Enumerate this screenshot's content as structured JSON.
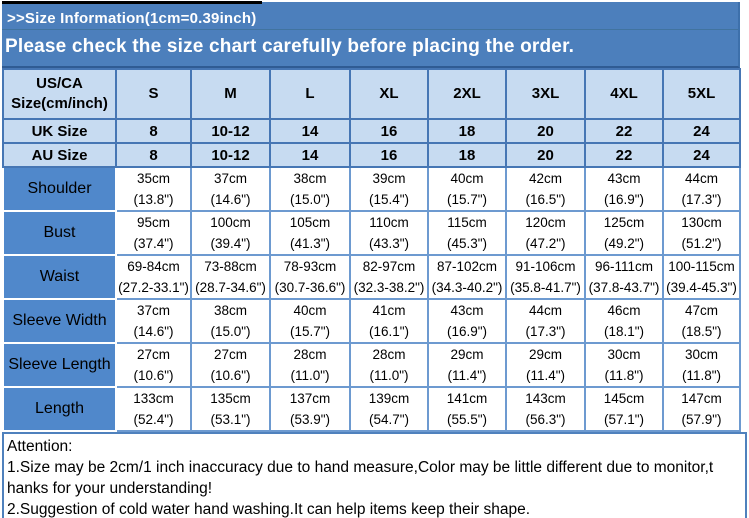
{
  "banner": {
    "title": ">>Size Information(1cm=0.39inch)",
    "subtitle": "Please check the size chart carefully before placing the order."
  },
  "size_chart": {
    "corner_header_line1": "US/CA",
    "corner_header_line2": "Size(cm/inch)",
    "size_columns": [
      "S",
      "M",
      "L",
      "XL",
      "2XL",
      "3XL",
      "4XL",
      "5XL"
    ],
    "region_size_rows": [
      {
        "label": "UK Size",
        "values": [
          "8",
          "10-12",
          "14",
          "16",
          "18",
          "20",
          "22",
          "24"
        ]
      },
      {
        "label": "AU Size",
        "values": [
          "8",
          "10-12",
          "14",
          "16",
          "18",
          "20",
          "22",
          "24"
        ]
      }
    ],
    "measurement_rows": [
      {
        "label": "Shoulder",
        "cells": [
          [
            "35cm",
            "(13.8\")"
          ],
          [
            "37cm",
            "(14.6\")"
          ],
          [
            "38cm",
            "(15.0\")"
          ],
          [
            "39cm",
            "(15.4\")"
          ],
          [
            "40cm",
            "(15.7\")"
          ],
          [
            "42cm",
            "(16.5\")"
          ],
          [
            "43cm",
            "(16.9\")"
          ],
          [
            "44cm",
            "(17.3\")"
          ]
        ]
      },
      {
        "label": "Bust",
        "cells": [
          [
            "95cm",
            "(37.4\")"
          ],
          [
            "100cm",
            "(39.4\")"
          ],
          [
            "105cm",
            "(41.3\")"
          ],
          [
            "110cm",
            "(43.3\")"
          ],
          [
            "115cm",
            "(45.3\")"
          ],
          [
            "120cm",
            "(47.2\")"
          ],
          [
            "125cm",
            "(49.2\")"
          ],
          [
            "130cm",
            "(51.2\")"
          ]
        ]
      },
      {
        "label": "Waist",
        "cells": [
          [
            "69-84cm",
            "(27.2-33.1\")"
          ],
          [
            "73-88cm",
            "(28.7-34.6\")"
          ],
          [
            "78-93cm",
            "(30.7-36.6\")"
          ],
          [
            "82-97cm",
            "(32.3-38.2\")"
          ],
          [
            "87-102cm",
            "(34.3-40.2\")"
          ],
          [
            "91-106cm",
            "(35.8-41.7\")"
          ],
          [
            "96-111cm",
            "(37.8-43.7\")"
          ],
          [
            "100-115cm",
            "(39.4-45.3\")"
          ]
        ]
      },
      {
        "label": "Sleeve Width",
        "cells": [
          [
            "37cm",
            "(14.6\")"
          ],
          [
            "38cm",
            "(15.0\")"
          ],
          [
            "40cm",
            "(15.7\")"
          ],
          [
            "41cm",
            "(16.1\")"
          ],
          [
            "43cm",
            "(16.9\")"
          ],
          [
            "44cm",
            "(17.3\")"
          ],
          [
            "46cm",
            "(18.1\")"
          ],
          [
            "47cm",
            "(18.5\")"
          ]
        ]
      },
      {
        "label": "Sleeve Length",
        "cells": [
          [
            "27cm",
            "(10.6\")"
          ],
          [
            "27cm",
            "(10.6\")"
          ],
          [
            "28cm",
            "(11.0\")"
          ],
          [
            "28cm",
            "(11.0\")"
          ],
          [
            "29cm",
            "(11.4\")"
          ],
          [
            "29cm",
            "(11.4\")"
          ],
          [
            "30cm",
            "(11.8\")"
          ],
          [
            "30cm",
            "(11.8\")"
          ]
        ]
      },
      {
        "label": "Length",
        "cells": [
          [
            "133cm",
            "(52.4\")"
          ],
          [
            "135cm",
            "(53.1\")"
          ],
          [
            "137cm",
            "(53.9\")"
          ],
          [
            "139cm",
            "(54.7\")"
          ],
          [
            "141cm",
            "(55.5\")"
          ],
          [
            "143cm",
            "(56.3\")"
          ],
          [
            "145cm",
            "(57.1\")"
          ],
          [
            "147cm",
            "(57.9\")"
          ]
        ]
      }
    ]
  },
  "attention": {
    "title": "Attention:",
    "lines": [
      "1.Size may be 2cm/1 inch inaccuracy due to hand measure,Color may be little different due to monitor,t",
      "hanks for your understanding!",
      "2.Suggestion of cold water hand washing.It can help items keep their shape."
    ]
  },
  "colors": {
    "banner_blue": "#4C7FBC",
    "label_blue": "#5088CB",
    "header_light_blue": "#C7DBF1",
    "header_border_blue": "#4676B4",
    "data_border_blue": "#6D9AD0",
    "attention_border_blue": "#4F81BD"
  }
}
